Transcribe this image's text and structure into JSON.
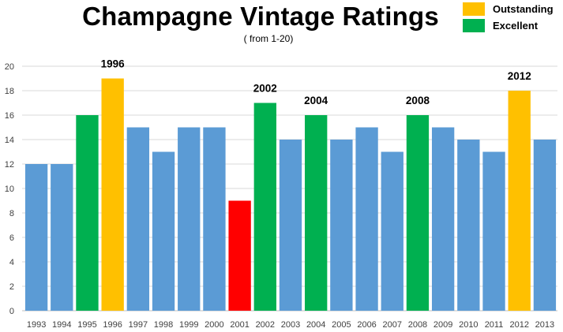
{
  "chart_data": {
    "type": "bar",
    "title": "Champagne Vintage Ratings",
    "subtitle": "( from 1-20)",
    "ylim": [
      0,
      20
    ],
    "yticks": [
      0,
      2,
      4,
      6,
      8,
      10,
      12,
      14,
      16,
      18,
      20
    ],
    "grid": true,
    "legend_position": "top-right",
    "legend": [
      {
        "label": "Outstanding",
        "color": "#FFC000"
      },
      {
        "label": "Excellent",
        "color": "#00B050"
      }
    ],
    "categories": [
      "1993",
      "1994",
      "1995",
      "1996",
      "1997",
      "1998",
      "1999",
      "2000",
      "2001",
      "2002",
      "2003",
      "2004",
      "2005",
      "2006",
      "2007",
      "2008",
      "2009",
      "2010",
      "2011",
      "2012",
      "2013"
    ],
    "values": [
      12,
      12,
      16,
      19,
      15,
      13,
      15,
      15,
      9,
      17,
      14,
      16,
      14,
      15,
      13,
      16,
      15,
      14,
      13,
      18,
      14
    ],
    "colors": [
      "#5B9BD5",
      "#5B9BD5",
      "#00B050",
      "#FFC000",
      "#5B9BD5",
      "#5B9BD5",
      "#5B9BD5",
      "#5B9BD5",
      "#FF0000",
      "#00B050",
      "#5B9BD5",
      "#00B050",
      "#5B9BD5",
      "#5B9BD5",
      "#5B9BD5",
      "#00B050",
      "#5B9BD5",
      "#5B9BD5",
      "#5B9BD5",
      "#FFC000",
      "#5B9BD5"
    ],
    "bar_labels": [
      "",
      "",
      "",
      "1996",
      "",
      "",
      "",
      "",
      "",
      "2002",
      "",
      "2004",
      "",
      "",
      "",
      "2008",
      "",
      "",
      "",
      "2012",
      ""
    ]
  }
}
